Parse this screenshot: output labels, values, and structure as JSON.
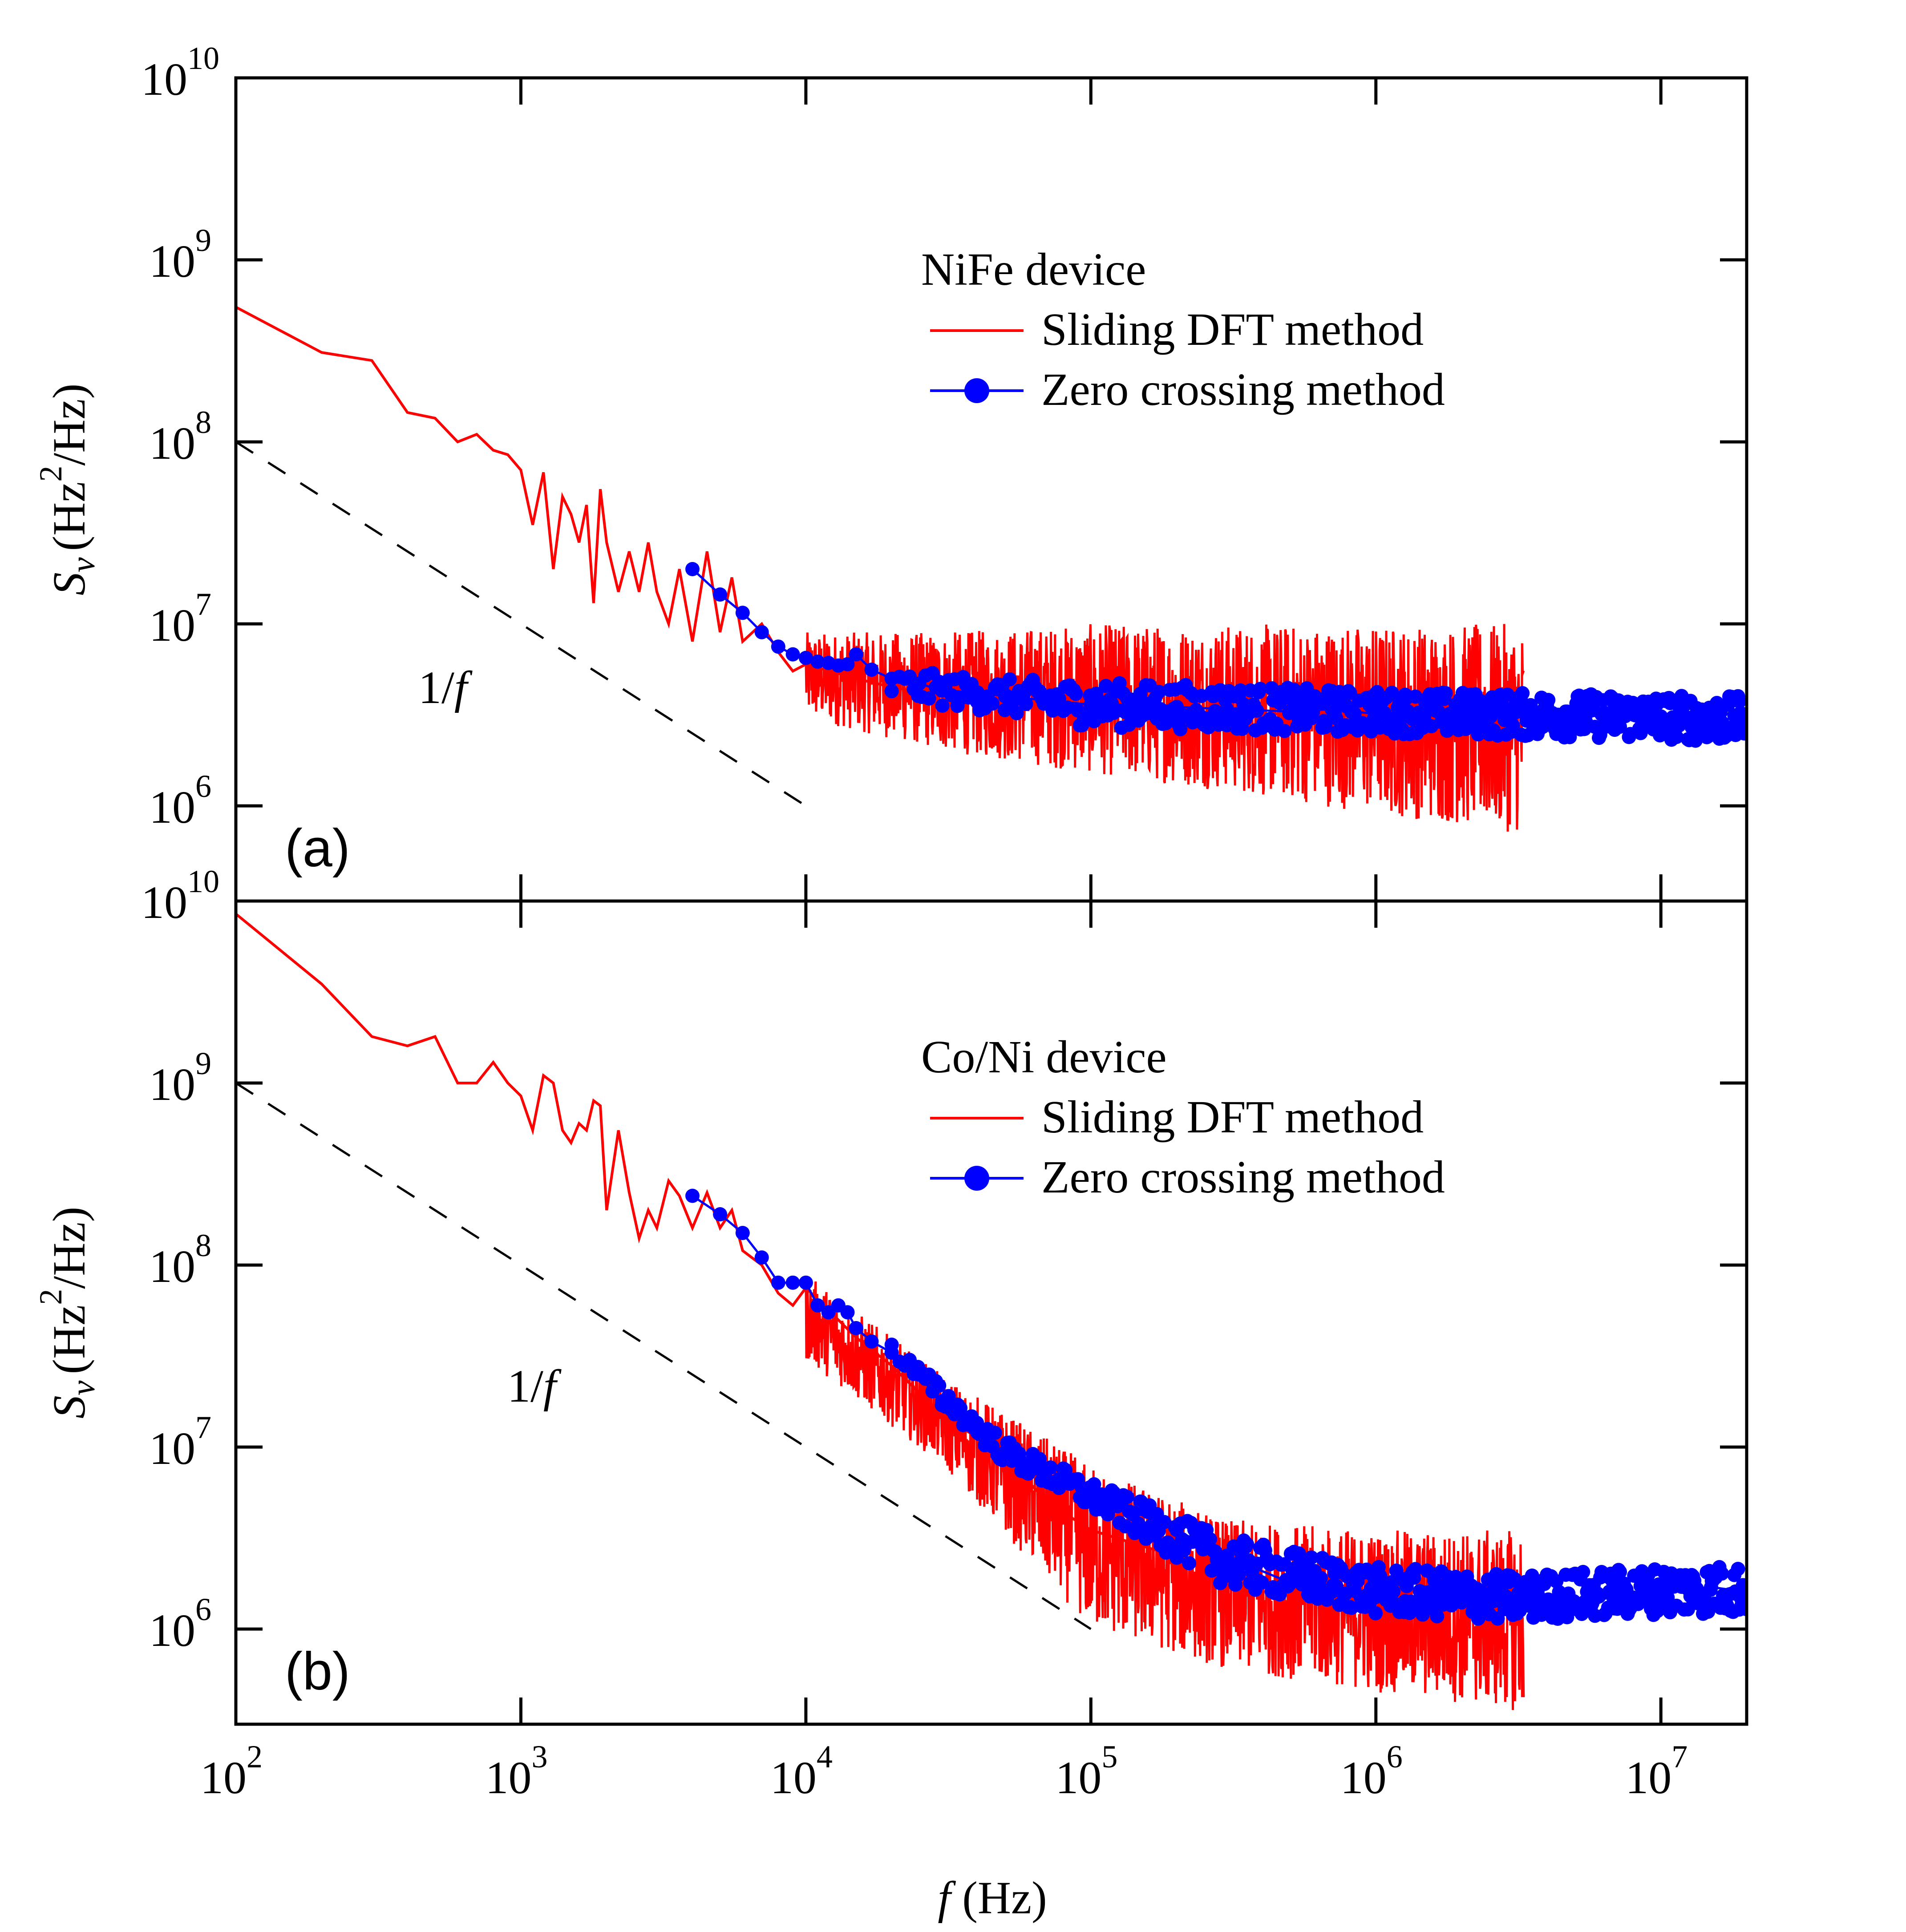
{
  "figure": {
    "xlabel_var": "f",
    "xlabel_unit": "(Hz)",
    "x_tick_labels": [
      {
        "value": 100,
        "base": "10",
        "exp": "2"
      },
      {
        "value": 1000,
        "base": "10",
        "exp": "3"
      },
      {
        "value": 10000,
        "base": "10",
        "exp": "4"
      },
      {
        "value": 100000,
        "base": "10",
        "exp": "5"
      },
      {
        "value": 1000000,
        "base": "10",
        "exp": "6"
      },
      {
        "value": 10000000,
        "base": "10",
        "exp": "7"
      }
    ]
  },
  "chart_data": [
    {
      "type": "line",
      "panel_label": "(a)",
      "device_label": "NiFe device",
      "ylabel_var": "S",
      "ylabel_sub": "v",
      "ylabel_unit_1": "(Hz",
      "ylabel_sup": "2",
      "ylabel_unit_2": "/Hz)",
      "xscale": "log",
      "yscale": "log",
      "xlim": [
        100,
        20000000
      ],
      "ylim": [
        300000,
        10000000000
      ],
      "y_tick_labels": [
        {
          "value": 1000000,
          "base": "10",
          "exp": "6"
        },
        {
          "value": 10000000,
          "base": "10",
          "exp": "7"
        },
        {
          "value": 100000000,
          "base": "10",
          "exp": "8"
        },
        {
          "value": 1000000000,
          "base": "10",
          "exp": "9"
        },
        {
          "value": 10000000000,
          "base": "10",
          "exp": "10"
        }
      ],
      "reference_line": {
        "label": "1/f",
        "label_base": "1/",
        "label_var": "f",
        "x": [
          100,
          10000
        ],
        "y": [
          100000000,
          1000000
        ]
      },
      "legend": {
        "position": "upper-right"
      },
      "series": [
        {
          "name": "Sliding DFT method",
          "color": "#ff0000",
          "style": "line",
          "x": [
            100,
            200,
            300,
            400,
            500,
            600,
            700,
            800,
            900,
            1000,
            1100,
            1200,
            1300,
            1400,
            1500,
            1600,
            1700,
            1800,
            1900,
            2000,
            2200,
            2400,
            2600,
            2800,
            3000,
            3300,
            3600,
            4000,
            4500,
            5000,
            5500,
            6000,
            7000,
            8000,
            9000,
            10000,
            15000,
            20000,
            30000,
            50000,
            70000,
            100000,
            200000,
            300000,
            500000,
            700000,
            1000000,
            1500000,
            2000000,
            3300000
          ],
          "y": [
            550000000,
            310000000,
            280000000,
            145000000,
            135000000,
            100000000,
            110000000,
            90000000,
            85000000,
            70000000,
            35000000,
            68000000,
            20000000,
            50000000,
            40000000,
            28000000,
            45000000,
            13000000,
            55000000,
            28000000,
            15000000,
            25000000,
            15000000,
            28000000,
            15000000,
            10000000,
            20000000,
            8000000,
            25000000,
            9000000,
            18000000,
            8000000,
            10000000,
            7000000,
            5500000,
            6000000,
            5000000,
            4500000,
            4000000,
            3800000,
            3600000,
            3500000,
            3300000,
            3200000,
            3200000,
            3100000,
            3200000,
            3100000,
            3200000,
            3200000
          ],
          "noise_band": {
            "x": [
              10000,
              30000,
              100000,
              300000,
              1000000,
              3300000
            ],
            "y_low": [
              3000000,
              2000000,
              1500000,
              1200000,
              900000,
              700000
            ],
            "y_high": [
              9000000,
              9000000,
              10000000,
              10000000,
              10000000,
              10000000
            ]
          }
        },
        {
          "name": "Zero crossing method",
          "color": "#0000ff",
          "style": "line-markers",
          "x": [
            4000,
            5000,
            6000,
            7000,
            8000,
            9000,
            10000,
            11000,
            12000,
            13000,
            14000,
            15000,
            17000,
            20000,
            25000,
            30000,
            40000,
            50000,
            70000,
            100000,
            150000,
            200000,
            300000,
            500000,
            700000,
            1000000,
            1500000,
            2000000,
            3000000,
            5000000,
            7000000,
            10000000,
            15000000,
            20000000
          ],
          "y": [
            20000000,
            14500000,
            11500000,
            9000000,
            7500000,
            6800000,
            6500000,
            6200000,
            6100000,
            5900000,
            6000000,
            6800000,
            5600000,
            5000000,
            4700000,
            4300000,
            4200000,
            4000000,
            3800000,
            3600000,
            3600000,
            3500000,
            3400000,
            3300000,
            3400000,
            3200000,
            3300000,
            3200000,
            3200000,
            3200000,
            3100000,
            3100000,
            3000000,
            3000000
          ],
          "scatter_band": {
            "x": [
              20000,
              50000,
              100000,
              300000,
              1000000,
              3000000,
              10000000,
              20000000
            ],
            "y_low": [
              3800000,
              3200000,
              2700000,
              2600000,
              2500000,
              2400000,
              2300000,
              2200000
            ],
            "y_high": [
              5600000,
              5000000,
              4800000,
              4600000,
              4300000,
              4200000,
              4100000,
              4000000
            ]
          }
        }
      ]
    },
    {
      "type": "line",
      "panel_label": "(b)",
      "device_label": "Co/Ni device",
      "ylabel_var": "S",
      "ylabel_sub": "v",
      "ylabel_unit_1": "(Hz",
      "ylabel_sup": "2",
      "ylabel_unit_2": "/Hz)",
      "xscale": "log",
      "yscale": "log",
      "xlim": [
        100,
        20000000
      ],
      "ylim": [
        300000,
        10000000000
      ],
      "y_tick_labels": [
        {
          "value": 1000000,
          "base": "10",
          "exp": "6"
        },
        {
          "value": 10000000,
          "base": "10",
          "exp": "7"
        },
        {
          "value": 100000000,
          "base": "10",
          "exp": "8"
        },
        {
          "value": 1000000000,
          "base": "10",
          "exp": "9"
        },
        {
          "value": 10000000000,
          "base": "10",
          "exp": "10"
        }
      ],
      "reference_line": {
        "label": "1/f",
        "label_base": "1/",
        "label_var": "f",
        "x": [
          100,
          100000
        ],
        "y": [
          1000000000,
          1000000
        ]
      },
      "legend": {
        "position": "upper-right"
      },
      "series": [
        {
          "name": "Sliding DFT method",
          "color": "#ff0000",
          "style": "line",
          "x": [
            100,
            200,
            300,
            400,
            500,
            600,
            700,
            800,
            900,
            1000,
            1100,
            1200,
            1300,
            1400,
            1500,
            1600,
            1700,
            1800,
            1900,
            2000,
            2200,
            2400,
            2600,
            2800,
            3000,
            3300,
            3600,
            4000,
            4500,
            5000,
            5500,
            6000,
            7000,
            8000,
            9000,
            10000,
            15000,
            20000,
            30000,
            50000,
            70000,
            100000,
            200000,
            300000,
            500000,
            700000,
            1000000,
            1500000,
            2000000,
            3300000
          ],
          "y": [
            8500000000,
            3500000000,
            1800000000,
            1600000000,
            1800000000,
            1000000000,
            1000000000,
            1300000000,
            1000000000,
            850000000,
            550000000,
            1100000000,
            1000000000,
            550000000,
            470000000,
            600000000,
            550000000,
            800000000,
            750000000,
            200000000,
            550000000,
            250000000,
            140000000,
            200000000,
            160000000,
            290000000,
            240000000,
            160000000,
            250000000,
            160000000,
            200000000,
            120000000,
            100000000,
            70000000,
            60000000,
            75000000,
            40000000,
            28000000,
            15000000,
            9000000,
            5000000,
            3500000,
            2500000,
            2000000,
            1600000,
            1500000,
            1400000,
            1400000,
            1400000,
            1400000
          ],
          "noise_band": {
            "x": [
              10000,
              30000,
              100000,
              300000,
              1000000,
              3300000
            ],
            "y_low": [
              30000000,
              8000000,
              1000000,
              600000,
              450000,
              350000
            ],
            "y_high": [
              90000000,
              25000000,
              8000000,
              4000000,
              3500000,
              3500000
            ]
          }
        },
        {
          "name": "Zero crossing method",
          "color": "#0000ff",
          "style": "line-markers",
          "x": [
            4000,
            5000,
            6000,
            7000,
            8000,
            9000,
            10000,
            11000,
            12000,
            13000,
            14000,
            15000,
            17000,
            20000,
            25000,
            30000,
            40000,
            50000,
            70000,
            100000,
            150000,
            200000,
            300000,
            500000,
            700000,
            1000000,
            1500000,
            2000000,
            3000000,
            5000000,
            7000000,
            10000000,
            15000000,
            20000000
          ],
          "y": [
            240000000,
            190000000,
            150000000,
            110000000,
            80000000,
            80000000,
            80000000,
            60000000,
            55000000,
            60000000,
            55000000,
            45000000,
            38000000,
            33000000,
            25000000,
            17000000,
            12000000,
            9000000,
            7500000,
            6000000,
            5000000,
            3500000,
            2500000,
            1800000,
            1600000,
            1500000,
            1400000,
            1400000,
            1400000,
            1400000,
            1500000,
            1600000,
            1700000,
            1600000
          ],
          "scatter_band": {
            "x": [
              20000,
              50000,
              100000,
              300000,
              1000000,
              3000000,
              10000000,
              20000000
            ],
            "y_low": [
              30000000,
              8000000,
              4500000,
              1700000,
              1200000,
              1100000,
              1200000,
              1200000
            ],
            "y_high": [
              38000000,
              11000000,
              6500000,
              3200000,
              2200000,
              2000000,
              2200000,
              2300000
            ]
          }
        }
      ]
    }
  ]
}
